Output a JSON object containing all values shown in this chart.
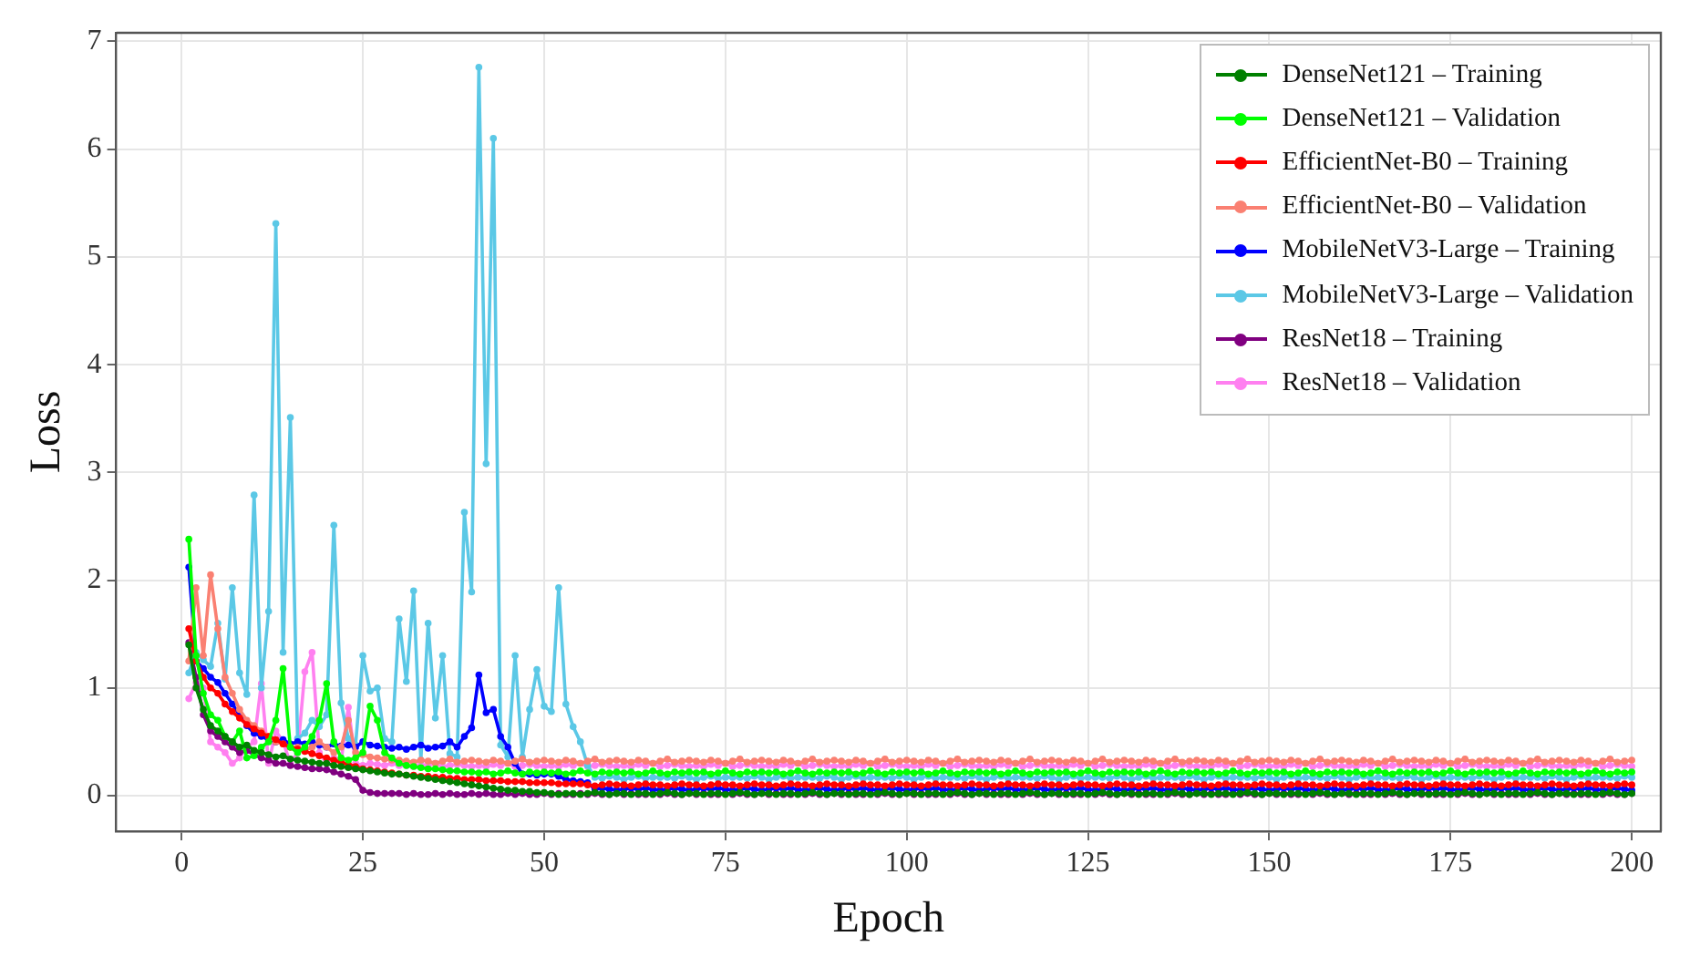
{
  "chart_data": {
    "type": "line",
    "xlabel": "Epoch",
    "ylabel": "Loss",
    "xlim": [
      -9,
      204
    ],
    "ylim": [
      -0.33,
      7.08
    ],
    "xticks": [
      0,
      25,
      50,
      75,
      100,
      125,
      150,
      175,
      200
    ],
    "yticks": [
      0,
      1,
      2,
      3,
      4,
      5,
      6,
      7
    ],
    "grid": true,
    "legend": "top right",
    "marker": "circle",
    "line_style": "solid",
    "x": [
      1,
      2,
      3,
      4,
      5,
      6,
      7,
      8,
      9,
      10,
      11,
      12,
      13,
      14,
      15,
      16,
      17,
      18,
      19,
      20,
      21,
      22,
      23,
      24,
      25,
      26,
      27,
      28,
      29,
      30,
      31,
      32,
      33,
      34,
      35,
      36,
      37,
      38,
      39,
      40,
      41,
      42,
      43,
      44,
      45,
      46,
      47,
      48,
      49,
      50,
      51,
      52,
      53,
      54,
      55,
      56,
      57,
      58,
      59,
      60,
      61,
      62,
      63,
      64,
      65,
      66,
      67,
      68,
      69,
      70,
      71,
      72,
      73,
      74,
      75,
      76,
      77,
      78,
      79,
      80,
      81,
      82,
      83,
      84,
      85,
      86,
      87,
      88,
      89,
      90,
      91,
      92,
      93,
      94,
      95,
      96,
      97,
      98,
      99,
      100,
      101,
      102,
      103,
      104,
      105,
      106,
      107,
      108,
      109,
      110,
      111,
      112,
      113,
      114,
      115,
      116,
      117,
      118,
      119,
      120,
      121,
      122,
      123,
      124,
      125,
      126,
      127,
      128,
      129,
      130,
      131,
      132,
      133,
      134,
      135,
      136,
      137,
      138,
      139,
      140,
      141,
      142,
      143,
      144,
      145,
      146,
      147,
      148,
      149,
      150,
      151,
      152,
      153,
      154,
      155,
      156,
      157,
      158,
      159,
      160,
      161,
      162,
      163,
      164,
      165,
      166,
      167,
      168,
      169,
      170,
      171,
      172,
      173,
      174,
      175,
      176,
      177,
      178,
      179,
      180,
      181,
      182,
      183,
      184,
      185,
      186,
      187,
      188,
      189,
      190,
      191,
      192,
      193,
      194,
      195,
      196,
      197,
      198,
      199,
      200
    ],
    "series": [
      {
        "name": "DenseNet121 – Training",
        "color": "#008000",
        "values": [
          1.4,
          1.0,
          0.8,
          0.65,
          0.6,
          0.55,
          0.5,
          0.45,
          0.47,
          0.42,
          0.4,
          0.38,
          0.36,
          0.37,
          0.34,
          0.33,
          0.32,
          0.31,
          0.3,
          0.3,
          0.28,
          0.27,
          0.26,
          0.25,
          0.24,
          0.23,
          0.22,
          0.21,
          0.2,
          0.2,
          0.19,
          0.18,
          0.17,
          0.16,
          0.15,
          0.14,
          0.13,
          0.12,
          0.11,
          0.1,
          0.09,
          0.08,
          0.07,
          0.06,
          0.05,
          0.05,
          0.04,
          0.04,
          0.03,
          0.03,
          0.02,
          0.01,
          0.02,
          0.02,
          0.01,
          0.02,
          0.03,
          0.02,
          0.01,
          0.02,
          0.02,
          0.01,
          0.02,
          0.02,
          0.01,
          0.02,
          0.03,
          0.02,
          0.01,
          0.02,
          0.02,
          0.01,
          0.02,
          0.02,
          0.01,
          0.02,
          0.03,
          0.02,
          0.01,
          0.02,
          0.02,
          0.01,
          0.02,
          0.02,
          0.01,
          0.02,
          0.03,
          0.02,
          0.01,
          0.02,
          0.02,
          0.01,
          0.02,
          0.02,
          0.01,
          0.02,
          0.03,
          0.02,
          0.01,
          0.02,
          0.02,
          0.01,
          0.02,
          0.02,
          0.01,
          0.02,
          0.03,
          0.02,
          0.01,
          0.02,
          0.02,
          0.01,
          0.02,
          0.02,
          0.01,
          0.02,
          0.03,
          0.02,
          0.01,
          0.02,
          0.02,
          0.01,
          0.02,
          0.02,
          0.01,
          0.02,
          0.03,
          0.02,
          0.01,
          0.02,
          0.02,
          0.01,
          0.02,
          0.02,
          0.01,
          0.02,
          0.03,
          0.02,
          0.01,
          0.02,
          0.02,
          0.01,
          0.02,
          0.02,
          0.01,
          0.02,
          0.03,
          0.02,
          0.01,
          0.02,
          0.02,
          0.01,
          0.02,
          0.02,
          0.01,
          0.02,
          0.03,
          0.02,
          0.01,
          0.02,
          0.02,
          0.01,
          0.02,
          0.02,
          0.01,
          0.02,
          0.03,
          0.02,
          0.01,
          0.02,
          0.02,
          0.01,
          0.02,
          0.02,
          0.01,
          0.02,
          0.03,
          0.02,
          0.01,
          0.02,
          0.02,
          0.01,
          0.02,
          0.02,
          0.01,
          0.02,
          0.03,
          0.02,
          0.01,
          0.02,
          0.02,
          0.01,
          0.02,
          0.02,
          0.01,
          0.02,
          0.03,
          0.02,
          0.01,
          0.02
        ]
      },
      {
        "name": "DenseNet121 – Validation",
        "color": "#00ff00",
        "values": [
          2.38,
          1.3,
          0.95,
          0.75,
          0.7,
          0.55,
          0.5,
          0.6,
          0.35,
          0.37,
          0.45,
          0.5,
          0.7,
          1.18,
          0.45,
          0.4,
          0.45,
          0.55,
          0.7,
          1.04,
          0.5,
          0.35,
          0.33,
          0.35,
          0.4,
          0.83,
          0.7,
          0.4,
          0.35,
          0.3,
          0.28,
          0.27,
          0.26,
          0.25,
          0.25,
          0.24,
          0.23,
          0.23,
          0.22,
          0.22,
          0.21,
          0.22,
          0.2,
          0.21,
          0.23,
          0.21,
          0.2,
          0.22,
          0.21,
          0.22,
          0.21,
          0.22,
          0.2,
          0.21,
          0.23,
          0.21,
          0.2,
          0.22,
          0.21,
          0.22,
          0.21,
          0.22,
          0.2,
          0.21,
          0.23,
          0.21,
          0.2,
          0.22,
          0.21,
          0.22,
          0.21,
          0.22,
          0.2,
          0.21,
          0.23,
          0.21,
          0.2,
          0.22,
          0.21,
          0.22,
          0.21,
          0.22,
          0.2,
          0.21,
          0.23,
          0.21,
          0.2,
          0.22,
          0.21,
          0.22,
          0.21,
          0.22,
          0.2,
          0.21,
          0.23,
          0.21,
          0.2,
          0.22,
          0.21,
          0.22,
          0.21,
          0.22,
          0.2,
          0.21,
          0.23,
          0.21,
          0.2,
          0.22,
          0.21,
          0.22,
          0.21,
          0.22,
          0.2,
          0.21,
          0.23,
          0.21,
          0.2,
          0.22,
          0.21,
          0.22,
          0.21,
          0.22,
          0.2,
          0.21,
          0.23,
          0.21,
          0.2,
          0.22,
          0.21,
          0.22,
          0.21,
          0.22,
          0.2,
          0.21,
          0.23,
          0.21,
          0.2,
          0.22,
          0.21,
          0.22,
          0.21,
          0.22,
          0.2,
          0.21,
          0.23,
          0.21,
          0.2,
          0.22,
          0.21,
          0.22,
          0.21,
          0.22,
          0.2,
          0.21,
          0.23,
          0.21,
          0.2,
          0.22,
          0.21,
          0.22,
          0.21,
          0.22,
          0.2,
          0.21,
          0.23,
          0.21,
          0.2,
          0.22,
          0.21,
          0.22,
          0.21,
          0.22,
          0.2,
          0.21,
          0.23,
          0.21,
          0.2,
          0.22,
          0.21,
          0.22,
          0.21,
          0.22,
          0.2,
          0.21,
          0.23,
          0.21,
          0.2,
          0.22,
          0.21,
          0.22,
          0.21,
          0.22,
          0.2,
          0.21,
          0.23,
          0.21,
          0.2,
          0.22,
          0.21,
          0.22
        ]
      },
      {
        "name": "EfficientNet-B0 – Training",
        "color": "#ff0000",
        "values": [
          1.55,
          1.25,
          1.1,
          1.0,
          0.95,
          0.85,
          0.78,
          0.72,
          0.66,
          0.62,
          0.58,
          0.55,
          0.52,
          0.48,
          0.45,
          0.43,
          0.41,
          0.39,
          0.37,
          0.35,
          0.33,
          0.31,
          0.29,
          0.27,
          0.25,
          0.24,
          0.23,
          0.22,
          0.21,
          0.2,
          0.19,
          0.19,
          0.18,
          0.18,
          0.17,
          0.17,
          0.16,
          0.16,
          0.15,
          0.15,
          0.15,
          0.14,
          0.14,
          0.14,
          0.13,
          0.13,
          0.13,
          0.12,
          0.12,
          0.12,
          0.12,
          0.11,
          0.11,
          0.11,
          0.11,
          0.1,
          0.09,
          0.1,
          0.11,
          0.1,
          0.1,
          0.09,
          0.1,
          0.11,
          0.1,
          0.1,
          0.09,
          0.1,
          0.11,
          0.1,
          0.1,
          0.09,
          0.1,
          0.11,
          0.1,
          0.1,
          0.09,
          0.1,
          0.11,
          0.1,
          0.1,
          0.09,
          0.1,
          0.11,
          0.1,
          0.1,
          0.09,
          0.1,
          0.11,
          0.1,
          0.1,
          0.09,
          0.1,
          0.11,
          0.1,
          0.1,
          0.09,
          0.1,
          0.11,
          0.1,
          0.1,
          0.09,
          0.1,
          0.11,
          0.1,
          0.1,
          0.09,
          0.1,
          0.11,
          0.1,
          0.1,
          0.09,
          0.1,
          0.11,
          0.1,
          0.1,
          0.09,
          0.1,
          0.11,
          0.1,
          0.1,
          0.09,
          0.1,
          0.11,
          0.1,
          0.1,
          0.09,
          0.1,
          0.11,
          0.1,
          0.1,
          0.09,
          0.1,
          0.11,
          0.1,
          0.1,
          0.09,
          0.1,
          0.11,
          0.1,
          0.1,
          0.09,
          0.1,
          0.11,
          0.1,
          0.1,
          0.09,
          0.1,
          0.11,
          0.1,
          0.1,
          0.09,
          0.1,
          0.11,
          0.1,
          0.1,
          0.09,
          0.1,
          0.11,
          0.1,
          0.1,
          0.09,
          0.1,
          0.11,
          0.1,
          0.1,
          0.09,
          0.1,
          0.11,
          0.1,
          0.1,
          0.09,
          0.1,
          0.11,
          0.1,
          0.1,
          0.09,
          0.1,
          0.11,
          0.1,
          0.1,
          0.09,
          0.1,
          0.11,
          0.1,
          0.1,
          0.09,
          0.1,
          0.11,
          0.1,
          0.1,
          0.09,
          0.1,
          0.11,
          0.1,
          0.1,
          0.09,
          0.1,
          0.11,
          0.1
        ]
      },
      {
        "name": "EfficientNet-B0 – Validation",
        "color": "#fa8072",
        "values": [
          1.25,
          1.93,
          1.3,
          2.05,
          1.55,
          1.1,
          0.95,
          0.8,
          0.7,
          0.65,
          0.6,
          0.55,
          0.5,
          0.48,
          0.45,
          0.45,
          0.42,
          0.45,
          0.5,
          0.45,
          0.4,
          0.45,
          0.7,
          0.4,
          0.38,
          0.36,
          0.35,
          0.34,
          0.33,
          0.33,
          0.32,
          0.31,
          0.33,
          0.32,
          0.3,
          0.32,
          0.34,
          0.31,
          0.32,
          0.33,
          0.32,
          0.31,
          0.33,
          0.32,
          0.3,
          0.32,
          0.34,
          0.31,
          0.32,
          0.33,
          0.32,
          0.31,
          0.33,
          0.32,
          0.3,
          0.32,
          0.34,
          0.31,
          0.32,
          0.33,
          0.32,
          0.31,
          0.33,
          0.32,
          0.3,
          0.32,
          0.34,
          0.31,
          0.32,
          0.33,
          0.32,
          0.31,
          0.33,
          0.32,
          0.3,
          0.32,
          0.34,
          0.31,
          0.32,
          0.33,
          0.32,
          0.31,
          0.33,
          0.32,
          0.3,
          0.32,
          0.34,
          0.31,
          0.32,
          0.33,
          0.32,
          0.31,
          0.33,
          0.32,
          0.3,
          0.32,
          0.34,
          0.31,
          0.32,
          0.33,
          0.32,
          0.31,
          0.33,
          0.32,
          0.3,
          0.32,
          0.34,
          0.31,
          0.32,
          0.33,
          0.32,
          0.31,
          0.33,
          0.32,
          0.3,
          0.32,
          0.34,
          0.31,
          0.32,
          0.33,
          0.32,
          0.31,
          0.33,
          0.32,
          0.3,
          0.32,
          0.34,
          0.31,
          0.32,
          0.33,
          0.32,
          0.31,
          0.33,
          0.32,
          0.3,
          0.32,
          0.34,
          0.31,
          0.32,
          0.33,
          0.32,
          0.31,
          0.33,
          0.32,
          0.3,
          0.32,
          0.34,
          0.31,
          0.32,
          0.33,
          0.32,
          0.31,
          0.33,
          0.32,
          0.3,
          0.32,
          0.34,
          0.31,
          0.32,
          0.33,
          0.32,
          0.31,
          0.33,
          0.32,
          0.3,
          0.32,
          0.34,
          0.31,
          0.32,
          0.33,
          0.32,
          0.31,
          0.33,
          0.32,
          0.3,
          0.32,
          0.34,
          0.31,
          0.32,
          0.33,
          0.32,
          0.31,
          0.33,
          0.32,
          0.3,
          0.32,
          0.34,
          0.31,
          0.32,
          0.33,
          0.32,
          0.31,
          0.33,
          0.32,
          0.3,
          0.32,
          0.34,
          0.31,
          0.32,
          0.33
        ]
      },
      {
        "name": "MobileNetV3-Large – Training",
        "color": "#0000ff",
        "values": [
          2.12,
          1.25,
          1.18,
          1.1,
          1.05,
          0.95,
          0.85,
          0.75,
          0.65,
          0.58,
          0.55,
          0.52,
          0.5,
          0.52,
          0.48,
          0.5,
          0.48,
          0.5,
          0.47,
          0.45,
          0.48,
          0.46,
          0.47,
          0.45,
          0.5,
          0.47,
          0.46,
          0.45,
          0.44,
          0.45,
          0.43,
          0.45,
          0.47,
          0.44,
          0.45,
          0.46,
          0.5,
          0.45,
          0.55,
          0.63,
          1.12,
          0.77,
          0.8,
          0.55,
          0.45,
          0.3,
          0.2,
          0.2,
          0.19,
          0.2,
          0.2,
          0.18,
          0.15,
          0.14,
          0.13,
          0.12,
          0.06,
          0.07,
          0.06,
          0.05,
          0.06,
          0.07,
          0.06,
          0.07,
          0.06,
          0.05,
          0.06,
          0.07,
          0.06,
          0.05,
          0.06,
          0.07,
          0.06,
          0.07,
          0.06,
          0.05,
          0.06,
          0.07,
          0.06,
          0.05,
          0.06,
          0.07,
          0.06,
          0.07,
          0.06,
          0.05,
          0.06,
          0.07,
          0.06,
          0.05,
          0.06,
          0.07,
          0.06,
          0.07,
          0.06,
          0.05,
          0.06,
          0.07,
          0.06,
          0.05,
          0.06,
          0.07,
          0.06,
          0.07,
          0.06,
          0.05,
          0.06,
          0.07,
          0.06,
          0.05,
          0.06,
          0.07,
          0.06,
          0.07,
          0.06,
          0.05,
          0.06,
          0.07,
          0.06,
          0.05,
          0.06,
          0.07,
          0.06,
          0.07,
          0.06,
          0.05,
          0.06,
          0.07,
          0.06,
          0.05,
          0.06,
          0.07,
          0.06,
          0.07,
          0.06,
          0.05,
          0.06,
          0.07,
          0.06,
          0.05,
          0.06,
          0.07,
          0.06,
          0.07,
          0.06,
          0.05,
          0.06,
          0.07,
          0.06,
          0.05,
          0.06,
          0.07,
          0.06,
          0.07,
          0.06,
          0.05,
          0.06,
          0.07,
          0.06,
          0.05,
          0.06,
          0.07,
          0.06,
          0.07,
          0.06,
          0.05,
          0.06,
          0.07,
          0.06,
          0.05,
          0.06,
          0.07,
          0.06,
          0.07,
          0.06,
          0.05,
          0.06,
          0.07,
          0.06,
          0.05,
          0.06,
          0.07,
          0.06,
          0.07,
          0.06,
          0.05,
          0.06,
          0.07,
          0.06,
          0.05,
          0.06,
          0.07,
          0.06,
          0.07,
          0.06,
          0.05,
          0.06,
          0.07,
          0.06,
          0.05
        ]
      },
      {
        "name": "MobileNetV3-Large – Validation",
        "color": "#5bc8e6",
        "values": [
          1.14,
          1.33,
          1.26,
          1.2,
          1.6,
          1.08,
          1.93,
          1.14,
          0.94,
          2.79,
          1.0,
          1.71,
          5.31,
          1.33,
          3.51,
          0.53,
          0.58,
          0.7,
          0.64,
          0.75,
          2.51,
          0.86,
          0.53,
          0.47,
          1.3,
          0.97,
          1.0,
          0.53,
          0.5,
          1.64,
          1.06,
          1.9,
          0.33,
          1.6,
          0.72,
          1.3,
          0.39,
          0.36,
          2.63,
          1.89,
          6.76,
          3.08,
          6.1,
          0.47,
          0.36,
          1.3,
          0.36,
          0.8,
          1.17,
          0.83,
          0.78,
          1.93,
          0.85,
          0.64,
          0.5,
          0.28,
          0.17,
          0.16,
          0.18,
          0.17,
          0.15,
          0.17,
          0.18,
          0.16,
          0.17,
          0.17,
          0.17,
          0.16,
          0.18,
          0.17,
          0.15,
          0.17,
          0.18,
          0.16,
          0.17,
          0.17,
          0.17,
          0.16,
          0.18,
          0.17,
          0.15,
          0.17,
          0.18,
          0.16,
          0.17,
          0.17,
          0.17,
          0.16,
          0.18,
          0.17,
          0.15,
          0.17,
          0.18,
          0.16,
          0.17,
          0.17,
          0.17,
          0.16,
          0.18,
          0.17,
          0.15,
          0.17,
          0.18,
          0.16,
          0.17,
          0.17,
          0.17,
          0.16,
          0.18,
          0.17,
          0.15,
          0.17,
          0.18,
          0.16,
          0.17,
          0.17,
          0.17,
          0.16,
          0.18,
          0.17,
          0.15,
          0.17,
          0.18,
          0.16,
          0.17,
          0.17,
          0.17,
          0.16,
          0.18,
          0.17,
          0.15,
          0.17,
          0.18,
          0.16,
          0.17,
          0.17,
          0.17,
          0.16,
          0.18,
          0.17,
          0.15,
          0.17,
          0.18,
          0.16,
          0.17,
          0.17,
          0.17,
          0.16,
          0.18,
          0.17,
          0.15,
          0.17,
          0.18,
          0.16,
          0.17,
          0.17,
          0.17,
          0.16,
          0.18,
          0.17,
          0.15,
          0.17,
          0.18,
          0.16,
          0.17,
          0.17,
          0.17,
          0.16,
          0.18,
          0.17,
          0.15,
          0.17,
          0.18,
          0.16,
          0.17,
          0.17,
          0.17,
          0.16,
          0.18,
          0.17,
          0.15,
          0.17,
          0.18,
          0.16,
          0.17,
          0.17,
          0.17,
          0.16,
          0.18,
          0.17,
          0.15,
          0.17,
          0.18,
          0.16,
          0.17,
          0.17,
          0.17,
          0.16,
          0.18,
          0.17
        ]
      },
      {
        "name": "ResNet18 – Training",
        "color": "#800080",
        "values": [
          1.42,
          1.1,
          0.75,
          0.6,
          0.55,
          0.5,
          0.45,
          0.4,
          0.42,
          0.38,
          0.35,
          0.33,
          0.3,
          0.3,
          0.28,
          0.27,
          0.26,
          0.25,
          0.25,
          0.24,
          0.22,
          0.2,
          0.18,
          0.15,
          0.05,
          0.03,
          0.02,
          0.02,
          0.02,
          0.02,
          0.01,
          0.02,
          0.01,
          0.01,
          0.02,
          0.01,
          0.02,
          0.01,
          0.01,
          0.02,
          0.01,
          0.02,
          0.01,
          0.01,
          0.02,
          0.01,
          0.02,
          0.01,
          0.01,
          0.02,
          0.01,
          0.02,
          0.01,
          0.01,
          0.02,
          0.01,
          0.02,
          0.01,
          0.01,
          0.02,
          0.01,
          0.02,
          0.01,
          0.01,
          0.02,
          0.01,
          0.02,
          0.01,
          0.01,
          0.02,
          0.01,
          0.02,
          0.01,
          0.01,
          0.02,
          0.01,
          0.02,
          0.01,
          0.01,
          0.02,
          0.01,
          0.02,
          0.01,
          0.01,
          0.02,
          0.01,
          0.02,
          0.01,
          0.01,
          0.02,
          0.01,
          0.02,
          0.01,
          0.01,
          0.02,
          0.01,
          0.02,
          0.01,
          0.01,
          0.02,
          0.01,
          0.02,
          0.01,
          0.01,
          0.02,
          0.01,
          0.02,
          0.01,
          0.01,
          0.02,
          0.01,
          0.02,
          0.01,
          0.01,
          0.02,
          0.01,
          0.02,
          0.01,
          0.01,
          0.02,
          0.01,
          0.02,
          0.01,
          0.01,
          0.02,
          0.01,
          0.02,
          0.01,
          0.01,
          0.02,
          0.01,
          0.02,
          0.01,
          0.01,
          0.02,
          0.01,
          0.02,
          0.01,
          0.01,
          0.02,
          0.01,
          0.02,
          0.01,
          0.01,
          0.02,
          0.01,
          0.02,
          0.01,
          0.01,
          0.02,
          0.01,
          0.02,
          0.01,
          0.01,
          0.02,
          0.01,
          0.02,
          0.01,
          0.01,
          0.02,
          0.01,
          0.02,
          0.01,
          0.01,
          0.02,
          0.01,
          0.02,
          0.01,
          0.01,
          0.02,
          0.01,
          0.02,
          0.01,
          0.01,
          0.02,
          0.01,
          0.02,
          0.01,
          0.01,
          0.02,
          0.01,
          0.02,
          0.01,
          0.01,
          0.02,
          0.01,
          0.02,
          0.01,
          0.01,
          0.02,
          0.01,
          0.02,
          0.01,
          0.01,
          0.02,
          0.01,
          0.02,
          0.01,
          0.01,
          0.02
        ]
      },
      {
        "name": "ResNet18 – Validation",
        "color": "#ff80f0",
        "values": [
          0.9,
          1.05,
          1.0,
          0.5,
          0.45,
          0.4,
          0.3,
          0.35,
          0.45,
          0.5,
          1.04,
          0.3,
          0.6,
          0.5,
          0.3,
          0.4,
          1.15,
          1.33,
          0.4,
          0.3,
          0.35,
          0.32,
          0.82,
          0.3,
          0.28,
          0.3,
          0.29,
          0.28,
          0.3,
          0.28,
          0.28,
          0.27,
          0.29,
          0.28,
          0.3,
          0.27,
          0.28,
          0.29,
          0.28,
          0.27,
          0.28,
          0.27,
          0.29,
          0.28,
          0.3,
          0.27,
          0.28,
          0.29,
          0.28,
          0.27,
          0.28,
          0.27,
          0.29,
          0.28,
          0.3,
          0.27,
          0.28,
          0.29,
          0.28,
          0.27,
          0.28,
          0.27,
          0.29,
          0.28,
          0.3,
          0.27,
          0.28,
          0.29,
          0.28,
          0.27,
          0.28,
          0.27,
          0.29,
          0.28,
          0.3,
          0.27,
          0.28,
          0.29,
          0.28,
          0.27,
          0.28,
          0.27,
          0.29,
          0.28,
          0.3,
          0.27,
          0.28,
          0.29,
          0.28,
          0.27,
          0.28,
          0.27,
          0.29,
          0.28,
          0.3,
          0.27,
          0.28,
          0.29,
          0.28,
          0.27,
          0.28,
          0.27,
          0.29,
          0.28,
          0.3,
          0.27,
          0.28,
          0.29,
          0.28,
          0.27,
          0.28,
          0.27,
          0.29,
          0.28,
          0.3,
          0.27,
          0.28,
          0.29,
          0.28,
          0.27,
          0.28,
          0.27,
          0.29,
          0.28,
          0.3,
          0.27,
          0.28,
          0.29,
          0.28,
          0.27,
          0.28,
          0.27,
          0.29,
          0.28,
          0.3,
          0.27,
          0.28,
          0.29,
          0.28,
          0.27,
          0.28,
          0.27,
          0.29,
          0.28,
          0.3,
          0.27,
          0.28,
          0.29,
          0.28,
          0.27,
          0.28,
          0.27,
          0.29,
          0.28,
          0.3,
          0.27,
          0.28,
          0.29,
          0.28,
          0.27,
          0.28,
          0.27,
          0.29,
          0.28,
          0.3,
          0.27,
          0.28,
          0.29,
          0.28,
          0.27,
          0.28,
          0.27,
          0.29,
          0.28,
          0.3,
          0.27,
          0.28,
          0.29,
          0.28,
          0.27,
          0.28,
          0.27,
          0.29,
          0.28,
          0.3,
          0.27,
          0.28,
          0.29,
          0.28,
          0.27,
          0.28,
          0.27,
          0.29,
          0.28,
          0.3,
          0.27,
          0.28,
          0.29,
          0.28,
          0.27
        ]
      }
    ]
  }
}
